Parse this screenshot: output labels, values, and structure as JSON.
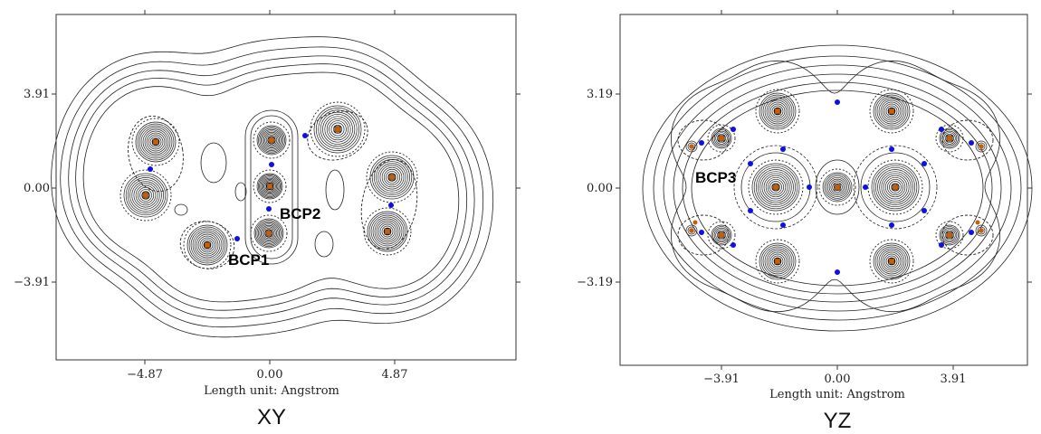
{
  "colors": {
    "contour": "#222222",
    "bcp_point": "#1010e0",
    "nucleus": "#c06010",
    "frame": "#333333"
  },
  "panels": [
    {
      "id": "xy",
      "caption": "XY",
      "xlabel": "Length unit: Angstrom",
      "xticks": [
        "−4.87",
        "0.00",
        "4.87"
      ],
      "yticks": [
        "3.91",
        "0.00",
        "−3.91"
      ],
      "annotations": [
        "BCP1",
        "BCP2"
      ],
      "nuclei_count": 10,
      "bcp_count": 7
    },
    {
      "id": "yz",
      "caption": "YZ",
      "xlabel": "Length unit: Angstrom",
      "xticks": [
        "−3.91",
        "0.00",
        "3.91"
      ],
      "yticks": [
        "3.19",
        "0.00",
        "−3.19"
      ],
      "annotations": [
        "BCP3"
      ],
      "nuclei_count": 14,
      "bcp_count": 22
    }
  ]
}
